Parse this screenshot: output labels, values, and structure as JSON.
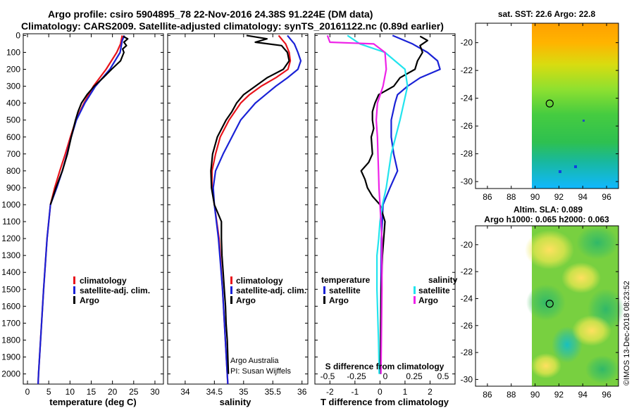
{
  "title": {
    "line1": "Argo profile: csiro 5904895_78 22-Nov-2016 24.38S 91.224E (DM data)",
    "line2": "Climatology: CARS2009. Satellite-adjusted climatology: synTS_20161122.nc (0.89d earlier)"
  },
  "colors": {
    "climatology": "#e8141c",
    "satellite": "#1a22d6",
    "argo": "#000000",
    "salinity_sat": "#22e4ee",
    "salinity_argo": "#ee22e8"
  },
  "chart_data": [
    {
      "type": "line",
      "id": "temperature",
      "xlabel": "temperature (deg C)",
      "ylabel": "",
      "xlim": [
        -1,
        32
      ],
      "ylim": [
        2060,
        -10
      ],
      "xticks": [
        0,
        5,
        10,
        15,
        20,
        25,
        30
      ],
      "yticks": [
        0,
        100,
        200,
        300,
        400,
        500,
        600,
        700,
        800,
        900,
        1000,
        1100,
        1200,
        1300,
        1400,
        1500,
        1600,
        1700,
        1800,
        1900,
        2000
      ],
      "legend": [
        "climatology",
        "satellite-adj. clim.",
        "Argo"
      ],
      "series": [
        {
          "name": "climatology",
          "depth": [
            0,
            50,
            100,
            200,
            300,
            400,
            500,
            600,
            700,
            800,
            900,
            1000,
            1200,
            1500,
            2000,
            2060
          ],
          "values": [
            22.3,
            21.9,
            21,
            18.5,
            15.5,
            13.3,
            11.4,
            10.1,
            8.9,
            7.6,
            6.4,
            5.4,
            4.6,
            3.8,
            2.6,
            2.5
          ]
        },
        {
          "name": "satellite-adj. clim.",
          "depth": [
            0,
            30,
            100,
            200,
            300,
            400,
            500,
            600,
            700,
            800,
            900,
            1000,
            1200,
            1500,
            2000,
            2060
          ],
          "values": [
            22.8,
            22.3,
            21.8,
            19.4,
            16,
            13.5,
            11.5,
            10.3,
            9.3,
            8.2,
            6.9,
            5.4,
            4.6,
            3.8,
            2.6,
            2.5
          ]
        },
        {
          "name": "Argo",
          "depth": [
            5,
            20,
            40,
            60,
            80,
            100,
            150,
            200,
            250,
            300,
            350,
            400,
            450,
            500,
            550,
            600,
            700,
            800,
            900,
            1000
          ],
          "values": [
            22.5,
            23.6,
            22.7,
            23.3,
            22.4,
            22.7,
            21.9,
            19.8,
            17.8,
            15.7,
            14,
            12.7,
            11.9,
            11.3,
            10.8,
            10.3,
            9.4,
            8.2,
            6.7,
            5.4
          ]
        }
      ]
    },
    {
      "type": "line",
      "id": "salinity",
      "xlabel": "salinity",
      "ylabel": "",
      "xlim": [
        33.7,
        36.1
      ],
      "ylim": [
        2060,
        -10
      ],
      "xticks": [
        34,
        34.5,
        35,
        35.5,
        36
      ],
      "xtick_labels": [
        "34",
        "34.5",
        "35",
        "35.5",
        "36"
      ],
      "legend": [
        "climatology",
        "satellite-adj. clim.",
        "Argo"
      ],
      "credit": [
        "Argo Australia",
        "PI: Susan Wijffels"
      ],
      "series": [
        {
          "name": "climatology",
          "depth": [
            0,
            50,
            100,
            150,
            200,
            250,
            300,
            350,
            400,
            500,
            600,
            700,
            800,
            900,
            1000,
            1200,
            1500,
            2000,
            2060
          ],
          "values": [
            35.6,
            35.72,
            35.78,
            35.8,
            35.76,
            35.55,
            35.3,
            35.1,
            34.95,
            34.75,
            34.6,
            34.52,
            34.46,
            34.46,
            34.5,
            34.58,
            34.64,
            34.72,
            34.73
          ]
        },
        {
          "name": "satellite-adj. clim.",
          "depth": [
            0,
            50,
            100,
            150,
            200,
            250,
            300,
            400,
            500,
            600,
            700,
            800,
            900,
            1000,
            1200,
            1500,
            2000,
            2060
          ],
          "values": [
            35.75,
            35.87,
            35.93,
            35.98,
            35.93,
            35.75,
            35.55,
            35.2,
            34.95,
            34.8,
            34.65,
            34.52,
            34.48,
            34.5,
            34.57,
            34.64,
            34.72,
            34.73
          ]
        },
        {
          "name": "Argo",
          "depth": [
            0,
            20,
            40,
            60,
            100,
            150,
            200,
            250,
            300,
            350,
            400,
            450,
            500,
            600,
            700,
            800,
            900,
            1000,
            1100,
            1200,
            1300,
            1400,
            1500,
            1600,
            1700,
            1800,
            1900,
            2000
          ],
          "values": [
            35.05,
            35.4,
            35.2,
            35.65,
            35.75,
            35.78,
            35.68,
            35.4,
            35.2,
            35,
            34.88,
            34.8,
            34.7,
            34.55,
            34.47,
            34.44,
            34.45,
            34.5,
            34.62,
            34.62,
            34.63,
            34.65,
            34.67,
            34.69,
            34.7,
            34.72,
            34.73,
            34.74
          ]
        }
      ]
    },
    {
      "type": "line",
      "id": "difference",
      "xlabel": "T difference from climatology",
      "secondary_xlabel": "S difference from climatology",
      "xlim": [
        -2.6,
        3.0
      ],
      "ylim": [
        2060,
        -10
      ],
      "xticks": [
        -2,
        -1,
        0,
        1,
        2
      ],
      "xtick_labels": [
        "-2",
        "-1",
        "0",
        "1",
        "2"
      ],
      "secondary_ticks": [
        -0.5,
        -0.25,
        0,
        0.25,
        0.5
      ],
      "secondary_tick_labels": [
        "-0.5",
        "-0.25",
        "0",
        "0.25",
        "0.5"
      ],
      "legend_groups": [
        {
          "heading": "temperature",
          "items": [
            "satellite",
            "Argo"
          ]
        },
        {
          "heading": "salinity",
          "items": [
            "satellite",
            "Argo"
          ]
        }
      ],
      "series": [
        {
          "name": "temperature satellite",
          "depth": [
            0,
            50,
            100,
            150,
            200,
            250,
            300,
            350,
            400,
            500,
            600,
            700,
            800,
            900,
            1000,
            1200,
            1500,
            2000
          ],
          "values": [
            0.5,
            1.3,
            1.9,
            2.3,
            2.4,
            1.6,
            1.1,
            0.7,
            0.6,
            0.45,
            0.45,
            0.55,
            0.7,
            0.4,
            0.12,
            0.06,
            0.04,
            0.02
          ]
        },
        {
          "name": "temperature Argo",
          "depth": [
            5,
            30,
            60,
            100,
            150,
            200,
            250,
            300,
            350,
            400,
            450,
            500,
            550,
            600,
            700,
            750,
            800,
            850,
            900,
            950,
            1000,
            1100,
            1200,
            1300,
            1500,
            1700,
            2000
          ],
          "values": [
            1.6,
            1.9,
            1.6,
            1.7,
            1.5,
            1.4,
            0.8,
            0.55,
            -0.05,
            -0.2,
            -0.3,
            -0.3,
            -0.25,
            -0.35,
            -0.3,
            -0.45,
            -0.75,
            -0.6,
            -0.5,
            -0.3,
            0,
            0.2,
            0.15,
            0.1,
            0.05,
            0.03,
            0.02
          ]
        },
        {
          "name": "salinity satellite",
          "depth": [
            0,
            50,
            100,
            200,
            300,
            500,
            700,
            800,
            900,
            1000,
            1100,
            1200,
            1300,
            1500,
            1800,
            2000
          ],
          "values": [
            -1.3,
            -0.8,
            0.2,
            1,
            1.1,
            0.8,
            0.45,
            0.35,
            0.25,
            0.1,
            0,
            -0.05,
            -0.12,
            -0.12,
            -0.06,
            -0.03
          ]
        },
        {
          "name": "salinity Argo",
          "depth": [
            0,
            40,
            50,
            100,
            200,
            300,
            400,
            500,
            600,
            700,
            800,
            900,
            1000,
            1200,
            1500,
            2000
          ],
          "values": [
            -2.1,
            -2.0,
            -0.25,
            0.2,
            0.25,
            0.12,
            -0.1,
            -0.15,
            -0.1,
            -0.08,
            -0.06,
            -0.04,
            0,
            0.08,
            0.08,
            0.04
          ]
        }
      ]
    },
    {
      "type": "heatmap",
      "id": "sst_map",
      "title": "sat. SST: 22.6 Argo: 22.8",
      "xlim": [
        85,
        97
      ],
      "ylim": [
        -30.5,
        -18.6
      ],
      "xticks": [
        86,
        88,
        90,
        92,
        94,
        96
      ],
      "yticks": [
        -20,
        -22,
        -24,
        -26,
        -28,
        -30
      ],
      "marker": {
        "lon": 91.224,
        "lat": -24.38
      }
    },
    {
      "type": "heatmap",
      "id": "sla_map",
      "title": "Altim. SLA: 0.089",
      "subtitle": "Argo h1000: 0.065 h2000: 0.063",
      "xlim": [
        85,
        97
      ],
      "ylim": [
        -30.5,
        -18.6
      ],
      "xticks": [
        86,
        88,
        90,
        92,
        94,
        96
      ],
      "yticks": [
        -20,
        -22,
        -24,
        -26,
        -28,
        -30
      ],
      "marker": {
        "lon": 91.224,
        "lat": -24.38
      }
    }
  ],
  "footer": {
    "stamp": "©IMOS 13-Dec-2018 08:23:52"
  }
}
